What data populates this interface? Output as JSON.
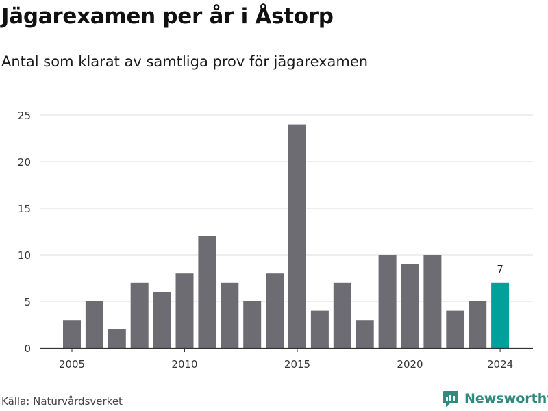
{
  "title": "Jägarexamen per år i Åstorp",
  "subtitle": "Antal som klarat av samtliga prov för jägarexamen",
  "source": "Källa: Naturvårdsverket",
  "brand": "Newsworthy",
  "colors": {
    "bar": "#6d6c72",
    "highlight": "#00a19a",
    "grid": "#dddddd",
    "brand": "#2e8b7e"
  },
  "chart_data": {
    "type": "bar",
    "x": [
      2005,
      2006,
      2007,
      2008,
      2009,
      2010,
      2011,
      2012,
      2013,
      2014,
      2015,
      2016,
      2017,
      2018,
      2019,
      2020,
      2021,
      2022,
      2023,
      2024
    ],
    "values": [
      3,
      5,
      2,
      7,
      6,
      8,
      12,
      7,
      5,
      8,
      24,
      4,
      7,
      3,
      10,
      9,
      10,
      4,
      5,
      7
    ],
    "x_ticks": [
      "2005",
      "2010",
      "2015",
      "2020",
      "2024"
    ],
    "y_ticks": [
      0,
      5,
      10,
      15,
      20,
      25
    ],
    "ylim": [
      0,
      25
    ],
    "highlight": {
      "x": 2024,
      "label": "7"
    },
    "grid": true
  }
}
